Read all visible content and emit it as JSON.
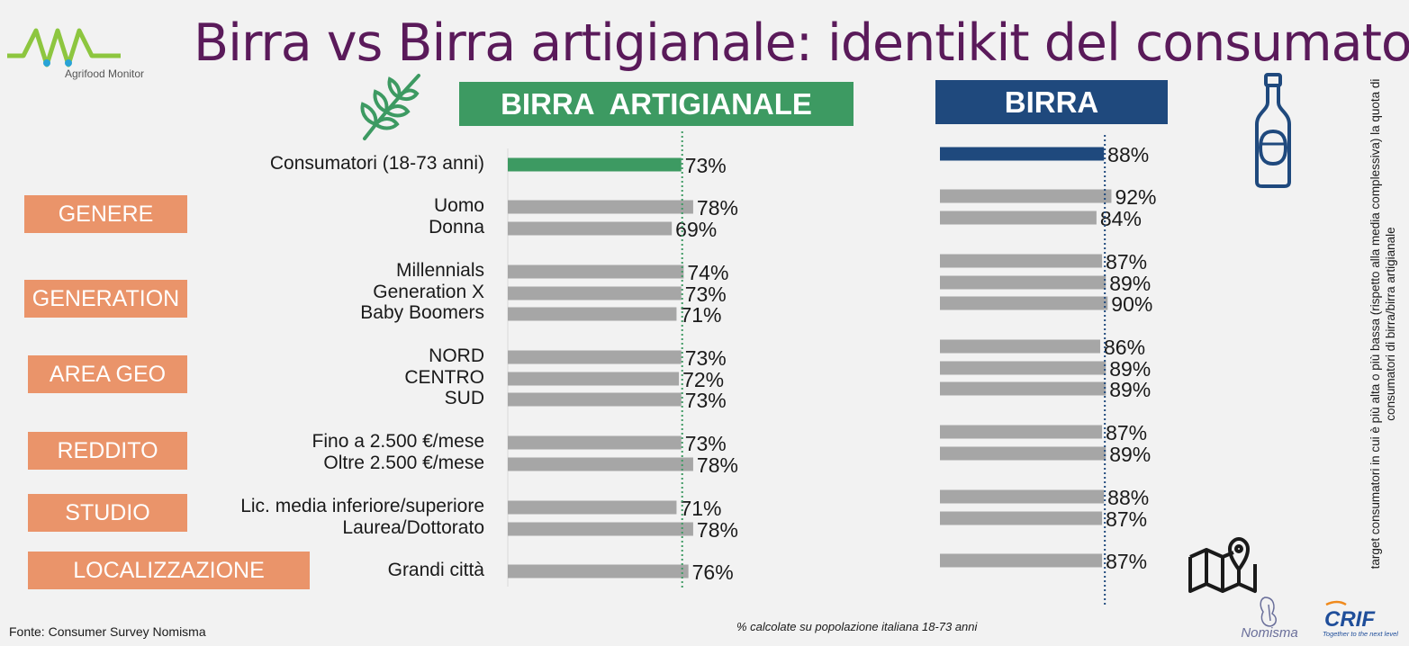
{
  "title": "Birra vs Birra artigianale: identikit del consumatore",
  "logo_text": "Agrifood Monitor",
  "headers": {
    "craft": "BIRRA  ARTIGIANALE",
    "beer": "BIRRA"
  },
  "categories": [
    "GENERE",
    "GENERATION",
    "AREA GEO",
    "REDDITO",
    "STUDIO",
    "LOCALIZZAZIONE"
  ],
  "side_note": "target consumatori in cui è più alta o più bassa (rispetto alla media complessiva) la quota di consumatori di birra/birra artigianale",
  "source": "Fonte:  Consumer Survey Nomisma",
  "footnote": "% calcolate su popolazione italiana 18-73 anni",
  "brand_logos": {
    "nomisma": "Nomisma",
    "crif": "CRIF",
    "crif_tagline": "Together to the next level"
  },
  "colors": {
    "craft_header": "#3d9a62",
    "beer_header": "#1f497d",
    "category_box": "#ea946a",
    "bar_gray": "#a6a6a6",
    "craft_total": "#3d9a62",
    "beer_total": "#1f497d",
    "title": "#5a1a5a"
  },
  "icons": [
    "wheat-icon",
    "bottle-icon",
    "map-pin-icon"
  ],
  "chart_data": {
    "type": "bar",
    "orientation": "horizontal",
    "categories": [
      "Consumatori (18-73 anni)",
      "Uomo",
      "Donna",
      "Millennials",
      "Generation X",
      "Baby Boomers",
      "NORD",
      "CENTRO",
      "SUD",
      "Fino a 2.500 €/mese",
      "Oltre 2.500 €/mese",
      "Lic. media inferiore/superiore",
      "Laurea/Dottorato",
      "Grandi città"
    ],
    "series": [
      {
        "name": "BIRRA  ARTIGIANALE",
        "values": [
          73,
          78,
          69,
          74,
          73,
          71,
          73,
          72,
          73,
          73,
          78,
          71,
          78,
          76
        ]
      },
      {
        "name": "BIRRA",
        "values": [
          88,
          92,
          84,
          87,
          89,
          90,
          86,
          89,
          89,
          87,
          89,
          88,
          87,
          87
        ]
      }
    ],
    "value_labels": {
      "craft": [
        "73%",
        "78%",
        "69%",
        "74%",
        "73%",
        "71%",
        "73%",
        "72%",
        "73%",
        "73%",
        "78%",
        "71%",
        "78%",
        "76%"
      ],
      "beer": [
        "88%",
        "92%",
        "84%",
        "87%",
        "89%",
        "90%",
        "86%",
        "89%",
        "89%",
        "87%",
        "89%",
        "88%",
        "87%",
        "87%"
      ]
    },
    "reference_lines": {
      "craft": 73,
      "beer": 88
    },
    "groups": [
      {
        "name": "GENERE",
        "rows": [
          1,
          2
        ]
      },
      {
        "name": "GENERATION",
        "rows": [
          3,
          4,
          5
        ]
      },
      {
        "name": "AREA GEO",
        "rows": [
          6,
          7,
          8
        ]
      },
      {
        "name": "REDDITO",
        "rows": [
          9,
          10
        ]
      },
      {
        "name": "STUDIO",
        "rows": [
          11,
          12
        ]
      },
      {
        "name": "LOCALIZZAZIONE",
        "rows": [
          13
        ]
      }
    ],
    "grid": false,
    "legend": "none"
  }
}
